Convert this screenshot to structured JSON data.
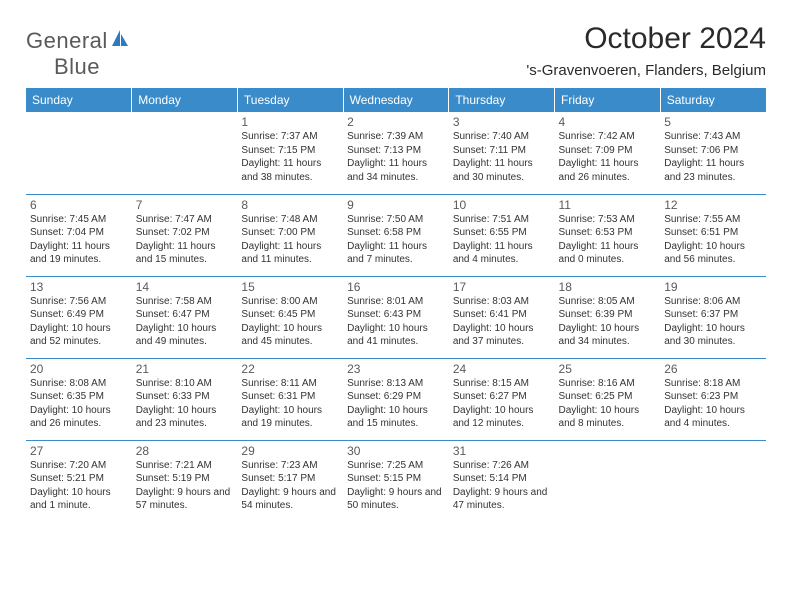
{
  "logo": {
    "text1": "General",
    "text2": "Blue",
    "text1_color": "#5a5a5a",
    "text2_color": "#2b7bbf"
  },
  "title": "October 2024",
  "location": "'s-Gravenvoeren, Flanders, Belgium",
  "colors": {
    "header_bg": "#3a8bc9",
    "header_text": "#ffffff",
    "divider": "#3a8bc9",
    "body_text": "#333333",
    "daynum": "#5a5a5a"
  },
  "weekday_headers": [
    "Sunday",
    "Monday",
    "Tuesday",
    "Wednesday",
    "Thursday",
    "Friday",
    "Saturday"
  ],
  "weeks": [
    [
      {
        "blank": true
      },
      {
        "blank": true
      },
      {
        "day": 1,
        "sunrise": "7:37 AM",
        "sunset": "7:15 PM",
        "daylight": "11 hours and 38 minutes."
      },
      {
        "day": 2,
        "sunrise": "7:39 AM",
        "sunset": "7:13 PM",
        "daylight": "11 hours and 34 minutes."
      },
      {
        "day": 3,
        "sunrise": "7:40 AM",
        "sunset": "7:11 PM",
        "daylight": "11 hours and 30 minutes."
      },
      {
        "day": 4,
        "sunrise": "7:42 AM",
        "sunset": "7:09 PM",
        "daylight": "11 hours and 26 minutes."
      },
      {
        "day": 5,
        "sunrise": "7:43 AM",
        "sunset": "7:06 PM",
        "daylight": "11 hours and 23 minutes."
      }
    ],
    [
      {
        "day": 6,
        "sunrise": "7:45 AM",
        "sunset": "7:04 PM",
        "daylight": "11 hours and 19 minutes."
      },
      {
        "day": 7,
        "sunrise": "7:47 AM",
        "sunset": "7:02 PM",
        "daylight": "11 hours and 15 minutes."
      },
      {
        "day": 8,
        "sunrise": "7:48 AM",
        "sunset": "7:00 PM",
        "daylight": "11 hours and 11 minutes."
      },
      {
        "day": 9,
        "sunrise": "7:50 AM",
        "sunset": "6:58 PM",
        "daylight": "11 hours and 7 minutes."
      },
      {
        "day": 10,
        "sunrise": "7:51 AM",
        "sunset": "6:55 PM",
        "daylight": "11 hours and 4 minutes."
      },
      {
        "day": 11,
        "sunrise": "7:53 AM",
        "sunset": "6:53 PM",
        "daylight": "11 hours and 0 minutes."
      },
      {
        "day": 12,
        "sunrise": "7:55 AM",
        "sunset": "6:51 PM",
        "daylight": "10 hours and 56 minutes."
      }
    ],
    [
      {
        "day": 13,
        "sunrise": "7:56 AM",
        "sunset": "6:49 PM",
        "daylight": "10 hours and 52 minutes."
      },
      {
        "day": 14,
        "sunrise": "7:58 AM",
        "sunset": "6:47 PM",
        "daylight": "10 hours and 49 minutes."
      },
      {
        "day": 15,
        "sunrise": "8:00 AM",
        "sunset": "6:45 PM",
        "daylight": "10 hours and 45 minutes."
      },
      {
        "day": 16,
        "sunrise": "8:01 AM",
        "sunset": "6:43 PM",
        "daylight": "10 hours and 41 minutes."
      },
      {
        "day": 17,
        "sunrise": "8:03 AM",
        "sunset": "6:41 PM",
        "daylight": "10 hours and 37 minutes."
      },
      {
        "day": 18,
        "sunrise": "8:05 AM",
        "sunset": "6:39 PM",
        "daylight": "10 hours and 34 minutes."
      },
      {
        "day": 19,
        "sunrise": "8:06 AM",
        "sunset": "6:37 PM",
        "daylight": "10 hours and 30 minutes."
      }
    ],
    [
      {
        "day": 20,
        "sunrise": "8:08 AM",
        "sunset": "6:35 PM",
        "daylight": "10 hours and 26 minutes."
      },
      {
        "day": 21,
        "sunrise": "8:10 AM",
        "sunset": "6:33 PM",
        "daylight": "10 hours and 23 minutes."
      },
      {
        "day": 22,
        "sunrise": "8:11 AM",
        "sunset": "6:31 PM",
        "daylight": "10 hours and 19 minutes."
      },
      {
        "day": 23,
        "sunrise": "8:13 AM",
        "sunset": "6:29 PM",
        "daylight": "10 hours and 15 minutes."
      },
      {
        "day": 24,
        "sunrise": "8:15 AM",
        "sunset": "6:27 PM",
        "daylight": "10 hours and 12 minutes."
      },
      {
        "day": 25,
        "sunrise": "8:16 AM",
        "sunset": "6:25 PM",
        "daylight": "10 hours and 8 minutes."
      },
      {
        "day": 26,
        "sunrise": "8:18 AM",
        "sunset": "6:23 PM",
        "daylight": "10 hours and 4 minutes."
      }
    ],
    [
      {
        "day": 27,
        "sunrise": "7:20 AM",
        "sunset": "5:21 PM",
        "daylight": "10 hours and 1 minute."
      },
      {
        "day": 28,
        "sunrise": "7:21 AM",
        "sunset": "5:19 PM",
        "daylight": "9 hours and 57 minutes."
      },
      {
        "day": 29,
        "sunrise": "7:23 AM",
        "sunset": "5:17 PM",
        "daylight": "9 hours and 54 minutes."
      },
      {
        "day": 30,
        "sunrise": "7:25 AM",
        "sunset": "5:15 PM",
        "daylight": "9 hours and 50 minutes."
      },
      {
        "day": 31,
        "sunrise": "7:26 AM",
        "sunset": "5:14 PM",
        "daylight": "9 hours and 47 minutes."
      },
      {
        "blank": true
      },
      {
        "blank": true
      }
    ]
  ],
  "labels": {
    "sunrise": "Sunrise:",
    "sunset": "Sunset:",
    "daylight": "Daylight:"
  }
}
